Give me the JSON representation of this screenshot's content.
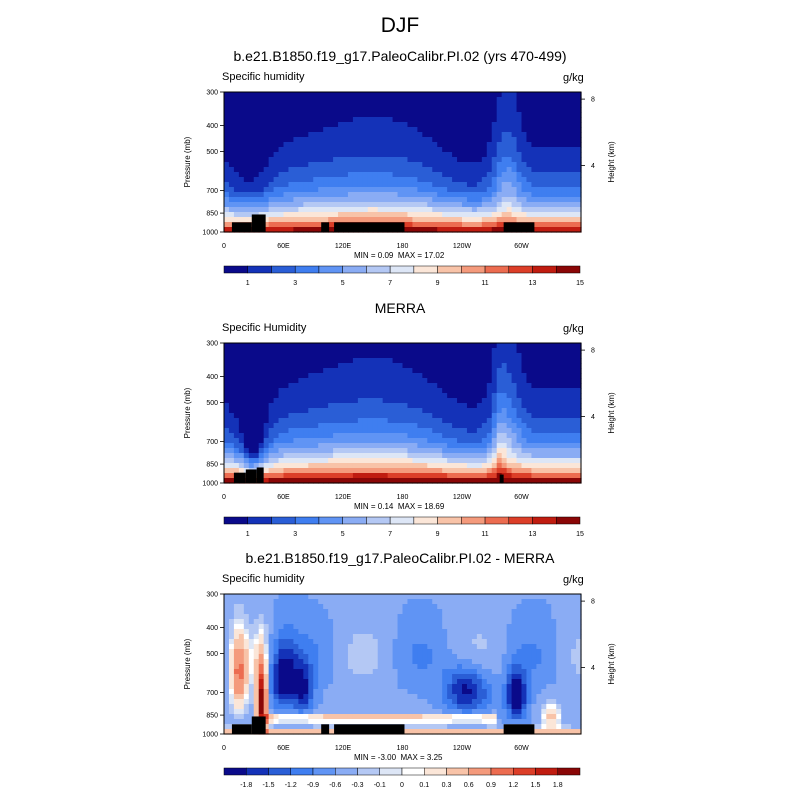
{
  "title": "DJF",
  "colors": {
    "moist_palette": [
      "#0a0a8a",
      "#1432b8",
      "#2a5ed6",
      "#3f7ef0",
      "#6094f4",
      "#8aacf4",
      "#b4c8f4",
      "#dde6f6",
      "#fbe6d8",
      "#f8c3a8",
      "#f49a7c",
      "#ec6c50",
      "#dc3e28",
      "#c01c10",
      "#8a0606"
    ],
    "diff_palette": [
      "#0a0a8a",
      "#1432b8",
      "#2a5ed6",
      "#3f7ef0",
      "#6094f4",
      "#8aacf4",
      "#b4c8f4",
      "#dde6f6",
      "#ffffff",
      "#fbe6d8",
      "#f8c3a8",
      "#f49a7c",
      "#ec6c50",
      "#dc3e28",
      "#c01c10",
      "#8a0606"
    ],
    "land": "#000000"
  },
  "panels": [
    {
      "title": "b.e21.B1850.f19_g17.PaleoCalibr.PI.02 (yrs 470-499)",
      "left_label": "Specific humidity",
      "right_label": "g/kg",
      "min": "0.09",
      "max": "17.02",
      "min_prefix": "MIN = ",
      "max_prefix": "MAX = "
    },
    {
      "title": "MERRA",
      "left_label": "Specific Humidity",
      "right_label": "g/kg",
      "min": "0.14",
      "max": "18.69",
      "min_prefix": "MIN = ",
      "max_prefix": "MAX = "
    },
    {
      "title": "b.e21.B1850.f19_g17.PaleoCalibr.PI.02 - MERRA",
      "left_label": "Specific humidity",
      "right_label": "g/kg",
      "min": "-3.00",
      "max": "3.25",
      "min_prefix": "MIN = ",
      "max_prefix": "MAX = "
    }
  ],
  "chart_data": [
    {
      "type": "heatmap",
      "title": "b.e21.B1850.f19_g17.PaleoCalibr.PI.02 (yrs 470-499)",
      "xlabel": "",
      "ylabel": "Pressure (mb)",
      "y2label": "Height (km)",
      "x_ticks": [
        "0",
        "60E",
        "120E",
        "180",
        "120W",
        "60W"
      ],
      "x_tick_values": [
        0,
        60,
        120,
        180,
        240,
        300
      ],
      "xlim": [
        0,
        360
      ],
      "y_ticks": [
        "300",
        "400",
        "500",
        "700",
        "850",
        "1000"
      ],
      "y_tick_values": [
        300,
        400,
        500,
        700,
        850,
        1000
      ],
      "ylim": [
        1000,
        300
      ],
      "y2_ticks": [
        "4",
        "8"
      ],
      "y2_tick_values": [
        4,
        8
      ],
      "colorbar_labels": [
        "1",
        "3",
        "5",
        "7",
        "9",
        "11",
        "13",
        "15"
      ],
      "colorbar_levels": [
        1,
        2,
        3,
        4,
        5,
        6,
        7,
        8,
        9,
        10,
        11,
        12,
        13,
        14,
        15
      ],
      "min": 0.09,
      "max": 17.02
    },
    {
      "type": "heatmap",
      "title": "MERRA",
      "xlabel": "",
      "ylabel": "Pressure (mb)",
      "y2label": "Height (km)",
      "x_ticks": [
        "0",
        "60E",
        "120E",
        "180",
        "120W",
        "60W"
      ],
      "x_tick_values": [
        0,
        60,
        120,
        180,
        240,
        300
      ],
      "xlim": [
        0,
        360
      ],
      "y_ticks": [
        "300",
        "400",
        "500",
        "700",
        "850",
        "1000"
      ],
      "y_tick_values": [
        300,
        400,
        500,
        700,
        850,
        1000
      ],
      "ylim": [
        1000,
        300
      ],
      "y2_ticks": [
        "4",
        "8"
      ],
      "y2_tick_values": [
        4,
        8
      ],
      "colorbar_labels": [
        "1",
        "3",
        "5",
        "7",
        "9",
        "11",
        "13",
        "15"
      ],
      "colorbar_levels": [
        1,
        2,
        3,
        4,
        5,
        6,
        7,
        8,
        9,
        10,
        11,
        12,
        13,
        14,
        15
      ],
      "min": 0.14,
      "max": 18.69
    },
    {
      "type": "heatmap",
      "title": "b.e21.B1850.f19_g17.PaleoCalibr.PI.02 - MERRA",
      "xlabel": "",
      "ylabel": "Pressure (mb)",
      "y2label": "Height (km)",
      "x_ticks": [
        "0",
        "60E",
        "120E",
        "180",
        "120W",
        "60W"
      ],
      "x_tick_values": [
        0,
        60,
        120,
        180,
        240,
        300
      ],
      "xlim": [
        0,
        360
      ],
      "y_ticks": [
        "300",
        "400",
        "500",
        "700",
        "850",
        "1000"
      ],
      "y_tick_values": [
        300,
        400,
        500,
        700,
        850,
        1000
      ],
      "ylim": [
        1000,
        300
      ],
      "y2_ticks": [
        "4",
        "8"
      ],
      "y2_tick_values": [
        4,
        8
      ],
      "colorbar_labels": [
        "-1.8",
        "-1.5",
        "-1.2",
        "-0.9",
        "-0.6",
        "-0.3",
        "-0.1",
        "0",
        "0.1",
        "0.3",
        "0.6",
        "0.9",
        "1.2",
        "1.5",
        "1.8"
      ],
      "colorbar_levels": [
        -1.8,
        -1.5,
        -1.2,
        -0.9,
        -0.6,
        -0.3,
        -0.1,
        0,
        0.1,
        0.3,
        0.6,
        0.9,
        1.2,
        1.5,
        1.8
      ],
      "min": -3.0,
      "max": 3.25
    }
  ]
}
